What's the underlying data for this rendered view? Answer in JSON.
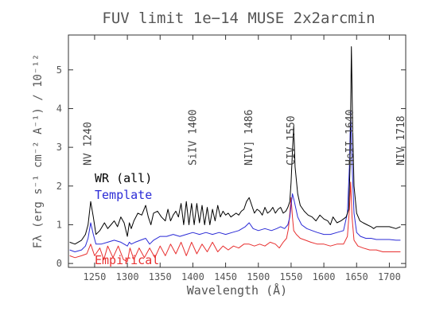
{
  "chart_data": {
    "type": "line",
    "title": "FUV limit 1e−14 MUSE 2x2arcmin",
    "xlabel": "Wavelength (Å)",
    "ylabel": "Fλ (erg s⁻¹ cm⁻² A⁻¹) / 10⁻¹²",
    "xlim": [
      1210,
      1725
    ],
    "ylim": [
      -0.1,
      5.9
    ],
    "xticks": [
      1250,
      1300,
      1350,
      1400,
      1450,
      1500,
      1550,
      1600,
      1650,
      1700
    ],
    "yticks": [
      0,
      1,
      2,
      3,
      4,
      5
    ],
    "grid": false,
    "series": [
      {
        "name": "WR (all)",
        "color": "#000000",
        "x": [
          1212,
          1220,
          1230,
          1236,
          1240,
          1244,
          1248,
          1252,
          1258,
          1265,
          1270,
          1275,
          1280,
          1285,
          1290,
          1295,
          1300,
          1303,
          1306,
          1310,
          1316,
          1322,
          1328,
          1332,
          1336,
          1340,
          1346,
          1352,
          1358,
          1362,
          1366,
          1370,
          1374,
          1378,
          1382,
          1386,
          1390,
          1394,
          1398,
          1402,
          1406,
          1410,
          1414,
          1418,
          1422,
          1426,
          1430,
          1434,
          1438,
          1442,
          1446,
          1450,
          1454,
          1458,
          1462,
          1466,
          1470,
          1474,
          1478,
          1482,
          1486,
          1490,
          1494,
          1498,
          1502,
          1506,
          1510,
          1514,
          1518,
          1522,
          1526,
          1530,
          1534,
          1538,
          1542,
          1545,
          1548,
          1550,
          1552,
          1554,
          1556,
          1560,
          1564,
          1570,
          1576,
          1582,
          1588,
          1594,
          1600,
          1606,
          1610,
          1614,
          1620,
          1626,
          1630,
          1634,
          1638,
          1640,
          1642,
          1644,
          1646,
          1650,
          1655,
          1660,
          1666,
          1672,
          1676,
          1680,
          1690,
          1700,
          1710,
          1717
        ],
        "y": [
          0.55,
          0.5,
          0.6,
          0.75,
          1.0,
          1.6,
          1.2,
          0.75,
          0.85,
          1.05,
          0.9,
          1.0,
          1.1,
          0.95,
          1.2,
          1.05,
          0.7,
          1.05,
          0.9,
          1.1,
          1.3,
          1.25,
          1.5,
          1.2,
          1.0,
          1.3,
          1.35,
          1.2,
          1.1,
          1.4,
          1.1,
          1.25,
          1.35,
          1.2,
          1.55,
          1.0,
          1.6,
          1.0,
          1.55,
          1.0,
          1.55,
          1.05,
          1.5,
          1.0,
          1.45,
          1.0,
          1.4,
          1.1,
          1.5,
          1.2,
          1.35,
          1.25,
          1.3,
          1.2,
          1.25,
          1.3,
          1.25,
          1.35,
          1.4,
          1.6,
          1.7,
          1.5,
          1.3,
          1.4,
          1.35,
          1.25,
          1.45,
          1.3,
          1.35,
          1.45,
          1.3,
          1.4,
          1.45,
          1.3,
          1.35,
          1.45,
          1.6,
          2.1,
          2.9,
          3.55,
          2.5,
          1.8,
          1.5,
          1.35,
          1.25,
          1.2,
          1.1,
          1.25,
          1.15,
          1.1,
          1.0,
          1.2,
          1.05,
          1.1,
          1.15,
          1.2,
          1.4,
          2.5,
          5.6,
          3.5,
          2.0,
          1.3,
          1.1,
          1.05,
          1.0,
          0.95,
          0.9,
          0.95,
          0.95,
          0.95,
          0.9,
          0.95
        ]
      },
      {
        "name": "Template",
        "color": "#2b2bd6",
        "x": [
          1212,
          1220,
          1230,
          1236,
          1240,
          1244,
          1248,
          1252,
          1260,
          1270,
          1280,
          1290,
          1300,
          1303,
          1306,
          1312,
          1320,
          1328,
          1334,
          1340,
          1350,
          1360,
          1370,
          1380,
          1390,
          1400,
          1410,
          1420,
          1430,
          1440,
          1450,
          1460,
          1470,
          1480,
          1486,
          1492,
          1500,
          1510,
          1520,
          1528,
          1534,
          1540,
          1545,
          1548,
          1550,
          1552,
          1555,
          1560,
          1566,
          1574,
          1582,
          1590,
          1600,
          1610,
          1620,
          1630,
          1636,
          1639,
          1641,
          1643,
          1646,
          1650,
          1656,
          1664,
          1672,
          1680,
          1690,
          1700,
          1710,
          1717
        ],
        "y": [
          0.35,
          0.3,
          0.35,
          0.45,
          0.65,
          1.05,
          0.75,
          0.5,
          0.5,
          0.55,
          0.6,
          0.55,
          0.45,
          0.55,
          0.5,
          0.55,
          0.6,
          0.65,
          0.5,
          0.6,
          0.7,
          0.7,
          0.75,
          0.7,
          0.75,
          0.8,
          0.75,
          0.8,
          0.75,
          0.8,
          0.75,
          0.8,
          0.85,
          0.95,
          1.05,
          0.9,
          0.85,
          0.9,
          0.85,
          0.9,
          0.95,
          0.9,
          1.0,
          1.2,
          1.5,
          1.8,
          1.6,
          1.2,
          1.0,
          0.9,
          0.85,
          0.8,
          0.75,
          0.75,
          0.8,
          0.85,
          1.3,
          2.5,
          3.95,
          2.6,
          1.3,
          0.8,
          0.7,
          0.65,
          0.65,
          0.62,
          0.62,
          0.62,
          0.6,
          0.6
        ]
      },
      {
        "name": "Empirical",
        "color": "#e83030",
        "x": [
          1212,
          1220,
          1230,
          1238,
          1244,
          1250,
          1258,
          1264,
          1270,
          1278,
          1286,
          1294,
          1300,
          1304,
          1310,
          1318,
          1326,
          1334,
          1342,
          1350,
          1358,
          1366,
          1374,
          1382,
          1390,
          1398,
          1406,
          1414,
          1422,
          1430,
          1438,
          1446,
          1454,
          1462,
          1470,
          1478,
          1486,
          1494,
          1502,
          1510,
          1518,
          1526,
          1532,
          1538,
          1543,
          1546,
          1548,
          1550,
          1552,
          1554,
          1558,
          1564,
          1572,
          1580,
          1590,
          1600,
          1610,
          1620,
          1630,
          1636,
          1639,
          1641,
          1643,
          1646,
          1652,
          1660,
          1670,
          1680,
          1690,
          1700,
          1710,
          1717
        ],
        "y": [
          0.2,
          0.15,
          0.2,
          0.25,
          0.5,
          0.2,
          0.4,
          0.1,
          0.45,
          0.15,
          0.45,
          0.1,
          0.05,
          0.4,
          0.1,
          0.4,
          0.15,
          0.4,
          0.15,
          0.45,
          0.2,
          0.5,
          0.25,
          0.55,
          0.2,
          0.55,
          0.25,
          0.5,
          0.3,
          0.55,
          0.3,
          0.45,
          0.35,
          0.45,
          0.4,
          0.5,
          0.5,
          0.45,
          0.5,
          0.45,
          0.55,
          0.5,
          0.4,
          0.55,
          0.65,
          0.9,
          1.3,
          1.7,
          1.2,
          0.85,
          0.75,
          0.65,
          0.6,
          0.55,
          0.5,
          0.5,
          0.45,
          0.5,
          0.5,
          0.7,
          1.4,
          2.1,
          1.2,
          0.6,
          0.45,
          0.4,
          0.35,
          0.35,
          0.3,
          0.3,
          0.3,
          0.3
        ]
      }
    ],
    "legend": {
      "placement": "left",
      "entries": [
        {
          "label": "WR (all)",
          "color": "#000000"
        },
        {
          "label": "Template",
          "color": "#2b2bd6"
        },
        {
          "label": "Empirical",
          "color": "#e83030"
        }
      ]
    },
    "line_ids": [
      {
        "label": "NV 1240",
        "wavelength": 1240
      },
      {
        "label": "SiIV 1400",
        "wavelength": 1400
      },
      {
        "label": "NIV] 1486",
        "wavelength": 1486
      },
      {
        "label": "CIV 1550",
        "wavelength": 1550
      },
      {
        "label": "HeII 1640",
        "wavelength": 1640
      },
      {
        "label": "NIV 1718",
        "wavelength": 1718
      }
    ]
  }
}
